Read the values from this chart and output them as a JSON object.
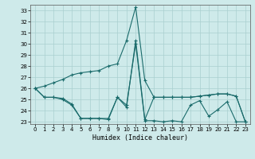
{
  "title": "",
  "xlabel": "Humidex (Indice chaleur)",
  "background_color": "#ceeaea",
  "line_color": "#1a6b6b",
  "grid_color": "#aacfcf",
  "xlim": [
    -0.5,
    23.5
  ],
  "ylim": [
    22.8,
    33.5
  ],
  "yticks": [
    23,
    24,
    25,
    26,
    27,
    28,
    29,
    30,
    31,
    32,
    33
  ],
  "xticks": [
    0,
    1,
    2,
    3,
    4,
    5,
    6,
    7,
    8,
    9,
    10,
    11,
    12,
    13,
    14,
    15,
    16,
    17,
    18,
    19,
    20,
    21,
    22,
    23
  ],
  "line1_y": [
    26.0,
    26.2,
    26.5,
    26.8,
    27.2,
    27.4,
    27.5,
    27.6,
    28.0,
    28.2,
    30.3,
    33.3,
    26.7,
    25.2,
    25.2,
    25.2,
    25.2,
    25.2,
    25.3,
    25.4,
    25.5,
    25.5,
    25.3,
    23.0
  ],
  "line2_y": [
    26.0,
    25.2,
    25.2,
    25.1,
    24.6,
    23.3,
    23.3,
    23.3,
    23.2,
    25.2,
    24.5,
    30.0,
    23.1,
    23.1,
    23.0,
    23.1,
    23.0,
    24.5,
    24.9,
    23.5,
    24.1,
    24.8,
    23.0,
    23.0
  ],
  "line3_y": [
    26.0,
    25.2,
    25.2,
    25.0,
    24.5,
    23.3,
    23.3,
    23.3,
    23.3,
    25.2,
    24.3,
    30.3,
    23.2,
    25.2,
    25.2,
    25.2,
    25.2,
    25.2,
    25.3,
    25.4,
    25.5,
    25.5,
    25.3,
    23.0
  ]
}
